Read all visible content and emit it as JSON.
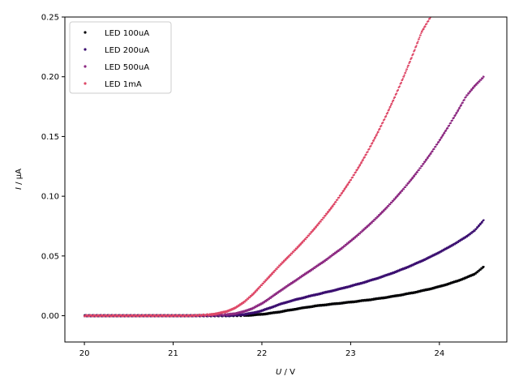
{
  "chart_data": {
    "type": "scatter",
    "xlabel_symbol": "U",
    "xlabel_unit": " / V",
    "ylabel_symbol": "I",
    "ylabel_unit": " / µA",
    "xlim": [
      19.78,
      24.76
    ],
    "ylim": [
      -0.022,
      0.25
    ],
    "xticks": [
      "20",
      "21",
      "22",
      "23",
      "24"
    ],
    "yticks": [
      "0.00",
      "0.05",
      "0.10",
      "0.15",
      "0.20",
      "0.25"
    ],
    "legend_position": "top-left",
    "grid": false,
    "series": [
      {
        "name": "LED 100uA",
        "color": "#000004",
        "x": [
          20.0,
          20.2,
          20.4,
          20.6,
          20.8,
          21.0,
          21.2,
          21.4,
          21.6,
          21.8,
          21.9,
          22.0,
          22.1,
          22.2,
          22.3,
          22.4,
          22.5,
          22.6,
          22.7,
          22.8,
          22.9,
          23.0,
          23.1,
          23.2,
          23.3,
          23.4,
          23.5,
          23.6,
          23.7,
          23.8,
          23.9,
          24.0,
          24.1,
          24.2,
          24.3,
          24.4,
          24.5
        ],
        "values": [
          0.0,
          0.0,
          0.0,
          0.0,
          0.0,
          0.0,
          0.0,
          0.0,
          0.0,
          0.0002,
          0.0006,
          0.0012,
          0.0021,
          0.0032,
          0.0045,
          0.0058,
          0.007,
          0.0081,
          0.009,
          0.0098,
          0.0106,
          0.0114,
          0.0123,
          0.0132,
          0.0142,
          0.0153,
          0.0165,
          0.0178,
          0.0192,
          0.0208,
          0.0225,
          0.0244,
          0.0266,
          0.029,
          0.0318,
          0.035,
          0.041
        ]
      },
      {
        "name": "LED 200uA",
        "color": "#3b0f70",
        "x": [
          20.0,
          20.2,
          20.4,
          20.6,
          20.8,
          21.0,
          21.2,
          21.4,
          21.6,
          21.7,
          21.8,
          21.9,
          22.0,
          22.1,
          22.2,
          22.3,
          22.4,
          22.5,
          22.6,
          22.7,
          22.8,
          22.9,
          23.0,
          23.1,
          23.2,
          23.3,
          23.4,
          23.5,
          23.6,
          23.7,
          23.8,
          23.9,
          24.0,
          24.1,
          24.2,
          24.3,
          24.4,
          24.5
        ],
        "values": [
          0.0,
          0.0,
          0.0,
          0.0,
          0.0,
          0.0,
          0.0,
          0.0,
          0.0001,
          0.0004,
          0.0011,
          0.0023,
          0.0042,
          0.0068,
          0.0095,
          0.0118,
          0.0138,
          0.0157,
          0.0175,
          0.0192,
          0.021,
          0.0228,
          0.0248,
          0.0268,
          0.029,
          0.0313,
          0.0338,
          0.0365,
          0.0394,
          0.0425,
          0.0458,
          0.0493,
          0.0531,
          0.0571,
          0.0614,
          0.066,
          0.0715,
          0.08
        ]
      },
      {
        "name": "LED 500uA",
        "color": "#8c2981",
        "x": [
          20.0,
          20.2,
          20.4,
          20.6,
          20.8,
          21.0,
          21.2,
          21.4,
          21.6,
          21.7,
          21.8,
          21.9,
          22.0,
          22.1,
          22.2,
          22.3,
          22.4,
          22.5,
          22.6,
          22.7,
          22.8,
          22.9,
          23.0,
          23.1,
          23.2,
          23.3,
          23.4,
          23.5,
          23.6,
          23.7,
          23.8,
          23.9,
          24.0,
          24.1,
          24.2,
          24.3,
          24.4,
          24.5
        ],
        "values": [
          0.0,
          0.0,
          0.0,
          0.0,
          0.0,
          0.0,
          0.0,
          0.0002,
          0.0008,
          0.0018,
          0.0035,
          0.0063,
          0.0102,
          0.0152,
          0.0205,
          0.0255,
          0.0305,
          0.0355,
          0.0405,
          0.0455,
          0.051,
          0.0565,
          0.0625,
          0.0688,
          0.0755,
          0.0825,
          0.09,
          0.098,
          0.1065,
          0.1155,
          0.1252,
          0.1355,
          0.1465,
          0.1582,
          0.1705,
          0.1835,
          0.1925,
          0.2
        ]
      },
      {
        "name": "LED 1mA",
        "color": "#de4968",
        "x": [
          20.0,
          20.2,
          20.4,
          20.6,
          20.8,
          21.0,
          21.2,
          21.4,
          21.5,
          21.6,
          21.7,
          21.8,
          21.9,
          22.0,
          22.1,
          22.2,
          22.3,
          22.4,
          22.5,
          22.6,
          22.7,
          22.8,
          22.9,
          23.0,
          23.1,
          23.2,
          23.3,
          23.4,
          23.5,
          23.6,
          23.7,
          23.8,
          23.9
        ],
        "values": [
          0.0,
          0.0,
          0.0,
          0.0,
          0.0,
          0.0,
          0.0,
          0.0008,
          0.0018,
          0.0035,
          0.0065,
          0.0115,
          0.018,
          0.026,
          0.034,
          0.042,
          0.0495,
          0.057,
          0.065,
          0.0735,
          0.0825,
          0.092,
          0.1025,
          0.1135,
          0.1255,
          0.1385,
          0.1525,
          0.1675,
          0.1835,
          0.2005,
          0.2185,
          0.2375,
          0.25
        ]
      }
    ]
  }
}
